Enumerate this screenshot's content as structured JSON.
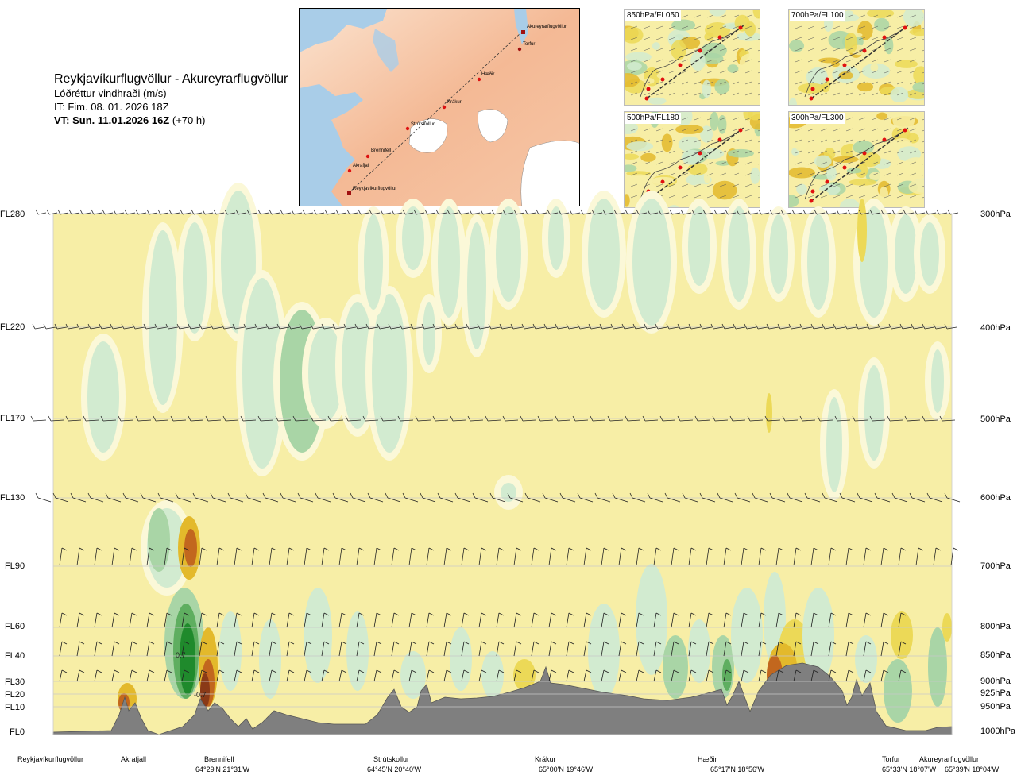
{
  "header": {
    "title": "Reykjavíkurflugvöllur - Akureyrarflugvöllur",
    "subtitle": "Lóðréttur vindhraði (m/s)",
    "issue_time": "IT: Fim. 08. 01. 2026 18Z",
    "valid_label": "VT: Sun. 11.01.2026 16Z",
    "valid_offset": "(+70 h)"
  },
  "route_map": {
    "waypoints": [
      "Akureyrarflugvöllur",
      "Torfur",
      "Hæðir",
      "Krákur",
      "Strútskollur",
      "Brennifell",
      "Akrafjall",
      "Reykjavíkurflugvöllur"
    ]
  },
  "thumbnails": [
    {
      "label": "850hPa/FL050"
    },
    {
      "label": "700hPa/FL100"
    },
    {
      "label": "500hPa/FL180"
    },
    {
      "label": "300hPa/FL300"
    }
  ],
  "chart_data": {
    "type": "heatmap",
    "title": "Lóðréttur vindhraði (m/s)",
    "levels": [
      {
        "fl": "FL280",
        "hpa": "300hPa"
      },
      {
        "fl": "FL220",
        "hpa": "400hPa"
      },
      {
        "fl": "FL170",
        "hpa": "500hPa"
      },
      {
        "fl": "FL130",
        "hpa": "600hPa"
      },
      {
        "fl": "FL90",
        "hpa": "700hPa"
      },
      {
        "fl": "FL60",
        "hpa": "800hPa"
      },
      {
        "fl": "FL40",
        "hpa": "850hPa"
      },
      {
        "fl": "FL30",
        "hpa": "900hPa"
      },
      {
        "fl": "FL20",
        "hpa": "925hPa"
      },
      {
        "fl": "FL10",
        "hpa": "950hPa"
      },
      {
        "fl": "FL0",
        "hpa": "1000hPa"
      }
    ],
    "locations": [
      {
        "name": "Reykjavíkurflugvöllur",
        "coord": ""
      },
      {
        "name": "Akrafjall",
        "coord": ""
      },
      {
        "name": "Brennifell",
        "coord": "64°29'N 21°31'W"
      },
      {
        "name": "Strútskollur",
        "coord": "64°45'N 20°40'W"
      },
      {
        "name": "Krákur",
        "coord": "65°00'N 19°46'W"
      },
      {
        "name": "Hæðir",
        "coord": "65°17'N 18°56'W"
      },
      {
        "name": "Torfur",
        "coord": "65°33'N 18°07'W"
      },
      {
        "name": "Akureyrarflugvöllur",
        "coord": "65°39'N 18°04'W"
      }
    ],
    "annotations": [
      "0.7",
      "-0.7"
    ],
    "colors": {
      "background": "#f7eea6",
      "weak_up": "#fbf8d8",
      "up1": "#d2ebd0",
      "up2": "#a9d5a6",
      "up3": "#5fae60",
      "up4": "#1f8a2c",
      "down1": "#ecd957",
      "down2": "#e3b92b",
      "down3": "#c2671e",
      "down4": "#8a3a17",
      "terrain": "#7f7f7f"
    }
  }
}
